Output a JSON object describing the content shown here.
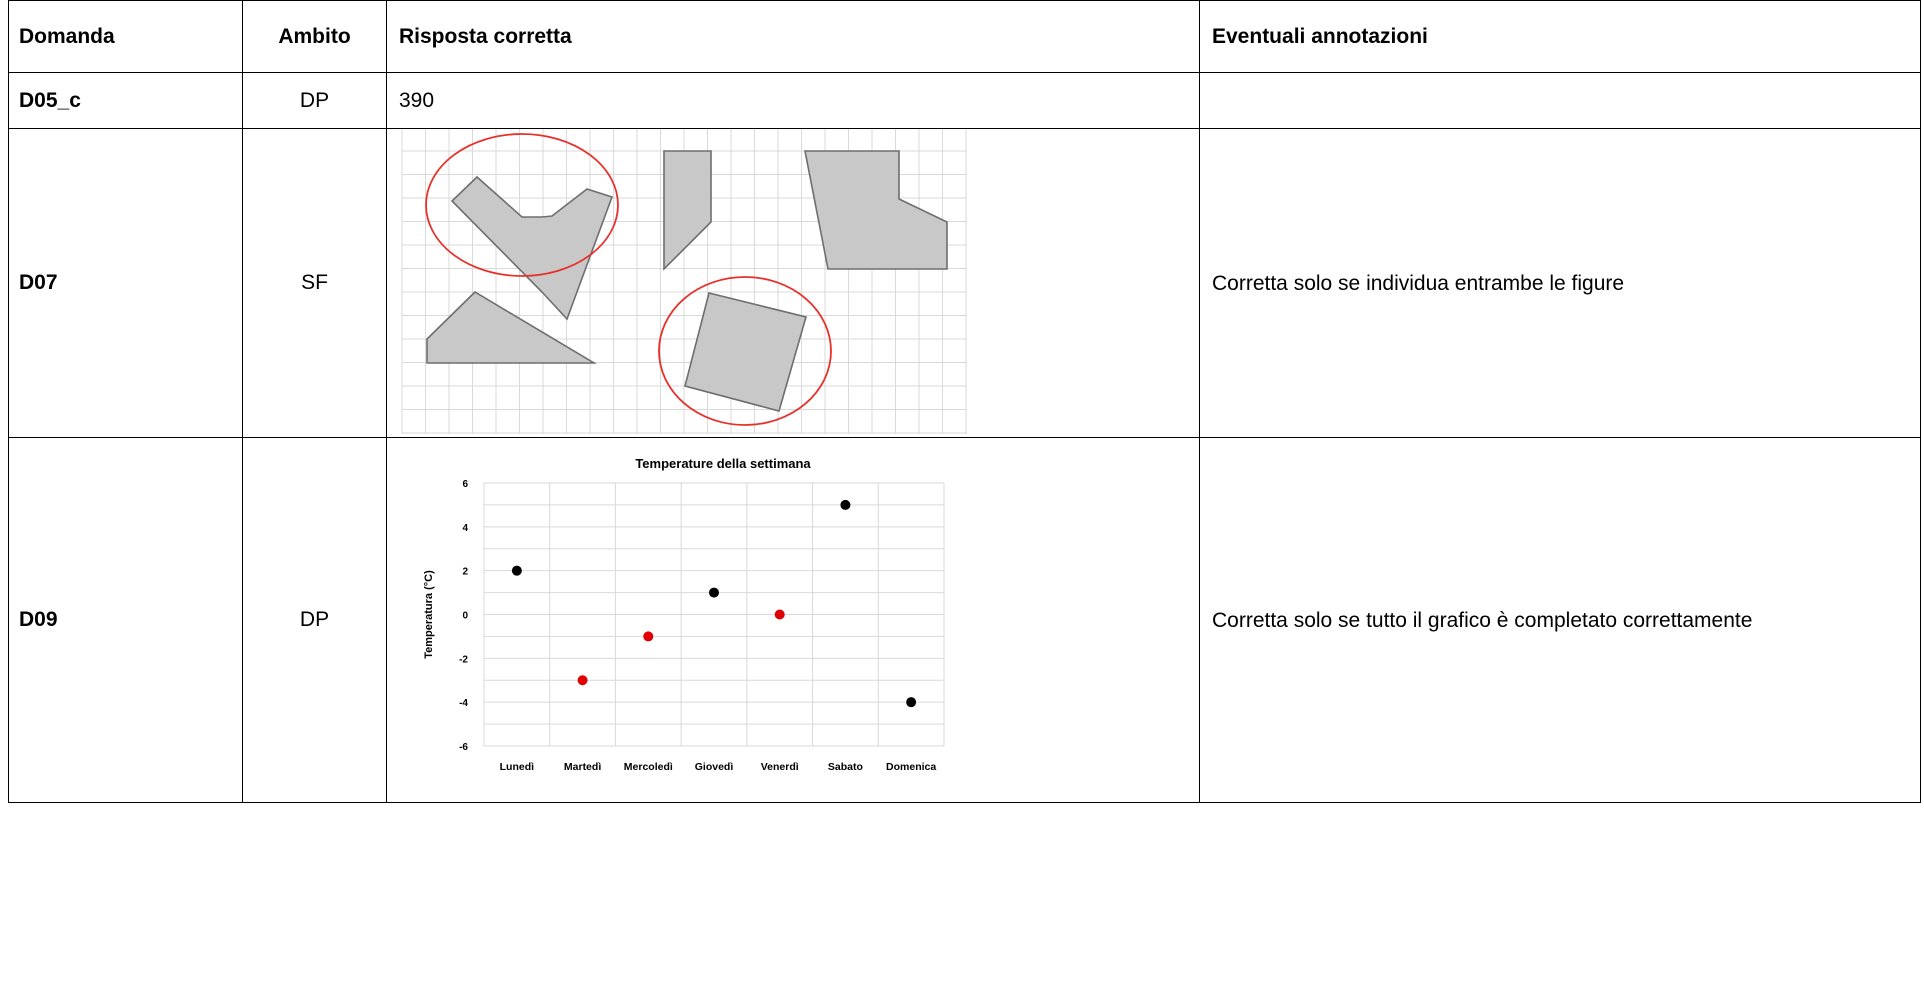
{
  "headers": {
    "domanda": "Domanda",
    "ambito": "Ambito",
    "risposta": "Risposta corretta",
    "annotazioni": "Eventuali annotazioni"
  },
  "rows": [
    {
      "domanda": "D05_c",
      "ambito": "DP",
      "risposta": "390",
      "annotazioni": ""
    },
    {
      "domanda": "D07",
      "ambito": "SF",
      "risposta": "",
      "annotazioni": "Corretta solo se individua entrambe le figure"
    },
    {
      "domanda": "D09",
      "ambito": "DP",
      "risposta": "",
      "annotazioni": "Corretta solo se tutto il grafico è completato correttamente"
    }
  ],
  "figure_d07": {
    "shape_fill": "#c8c8c8",
    "shape_stroke": "#6e6e6e",
    "circle_color": "#e8302a",
    "grid_color": "#d9d9d9"
  },
  "chart_data": {
    "type": "scatter",
    "title": "Temperature della settimana",
    "ylabel": "Temperatura (°C)",
    "xlabel": "",
    "categories": [
      "Lunedì",
      "Martedì",
      "Mercoledì",
      "Giovedì",
      "Venerdì",
      "Sabato",
      "Domenica"
    ],
    "values": [
      2,
      -3,
      -1,
      1,
      0,
      5,
      -4
    ],
    "point_colors": [
      "#000000",
      "#e00000",
      "#e00000",
      "#000000",
      "#e00000",
      "#000000",
      "#000000"
    ],
    "ylim": [
      -6,
      6
    ],
    "yticks": [
      -6,
      -4,
      -2,
      0,
      2,
      4,
      6
    ],
    "grid": true,
    "legend": "none"
  }
}
